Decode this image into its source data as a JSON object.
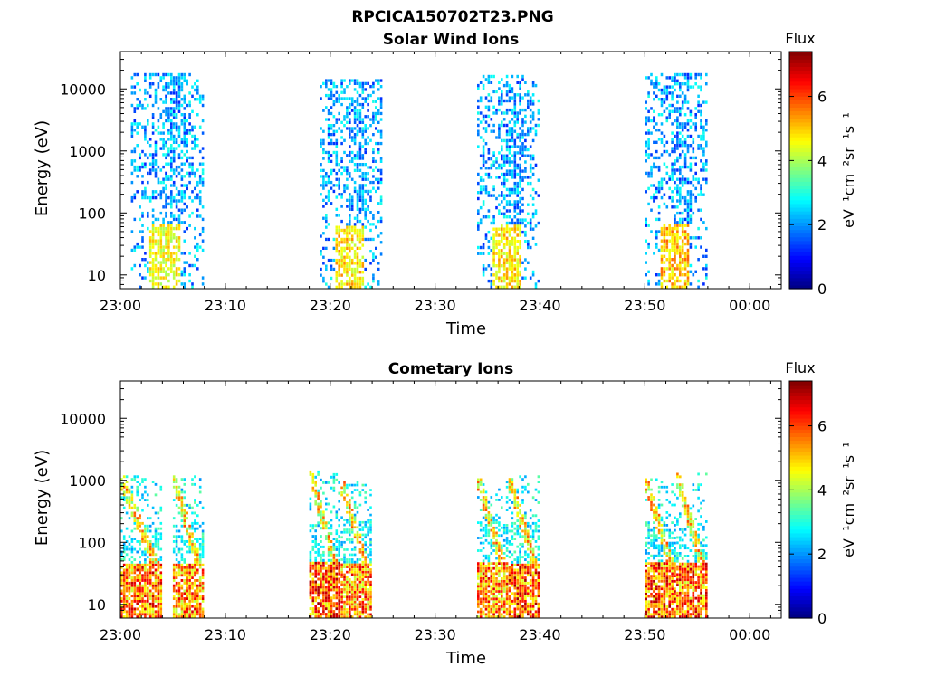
{
  "figure": {
    "title": "RPCICA150702T23.PNG"
  },
  "colorbar": {
    "label": "Flux",
    "unit": "eV⁻¹cm⁻²sr⁻¹s⁻¹",
    "ticks": [
      "0",
      "2",
      "4",
      "6"
    ],
    "range": [
      0,
      7.4
    ],
    "colormap": "jet"
  },
  "chart_data": [
    {
      "type": "heatmap",
      "title": "Solar Wind Ions",
      "xlabel": "Time",
      "ylabel": "Energy (eV)",
      "yscale": "log",
      "ylim": [
        6,
        40000
      ],
      "xlim": [
        "23:00",
        "00:03"
      ],
      "x_ticks": [
        "23:00",
        "23:10",
        "23:20",
        "23:30",
        "23:40",
        "23:50",
        "00:00"
      ],
      "y_ticks": [
        "10",
        "100",
        "1000",
        "10000"
      ],
      "grid": false,
      "bursts": [
        {
          "start": "23:01",
          "end": "23:08",
          "peak_flux": 5.2,
          "main_band_eV": [
            10,
            15000
          ]
        },
        {
          "start": "23:19",
          "end": "23:25",
          "peak_flux": 5.5,
          "main_band_eV": [
            10,
            12000
          ]
        },
        {
          "start": "23:34",
          "end": "23:40",
          "peak_flux": 5.5,
          "main_band_eV": [
            10,
            14000
          ]
        },
        {
          "start": "23:50",
          "end": "23:56",
          "peak_flux": 5.8,
          "main_band_eV": [
            10,
            15000
          ]
        }
      ]
    },
    {
      "type": "heatmap",
      "title": "Cometary Ions",
      "xlabel": "Time",
      "ylabel": "Energy (eV)",
      "yscale": "log",
      "ylim": [
        6,
        40000
      ],
      "xlim": [
        "23:00",
        "00:03"
      ],
      "x_ticks": [
        "23:00",
        "23:10",
        "23:20",
        "23:30",
        "23:40",
        "23:50",
        "00:00"
      ],
      "y_ticks": [
        "10",
        "100",
        "1000",
        "10000"
      ],
      "grid": false,
      "bursts": [
        {
          "start": "23:00",
          "end": "23:04",
          "peak_flux": 7.0,
          "main_band_eV": [
            6,
            1000
          ]
        },
        {
          "start": "23:05",
          "end": "23:08",
          "peak_flux": 6.8,
          "main_band_eV": [
            6,
            1000
          ]
        },
        {
          "start": "23:18",
          "end": "23:21",
          "peak_flux": 7.2,
          "main_band_eV": [
            6,
            1200
          ]
        },
        {
          "start": "23:21",
          "end": "23:24",
          "peak_flux": 6.8,
          "main_band_eV": [
            6,
            800
          ]
        },
        {
          "start": "23:34",
          "end": "23:37",
          "peak_flux": 6.8,
          "main_band_eV": [
            6,
            900
          ]
        },
        {
          "start": "23:37",
          "end": "23:40",
          "peak_flux": 7.2,
          "main_band_eV": [
            6,
            1000
          ]
        },
        {
          "start": "23:50",
          "end": "23:53",
          "peak_flux": 7.2,
          "main_band_eV": [
            6,
            900
          ]
        },
        {
          "start": "23:53",
          "end": "23:56",
          "peak_flux": 7.0,
          "main_band_eV": [
            6,
            1100
          ]
        }
      ]
    }
  ]
}
